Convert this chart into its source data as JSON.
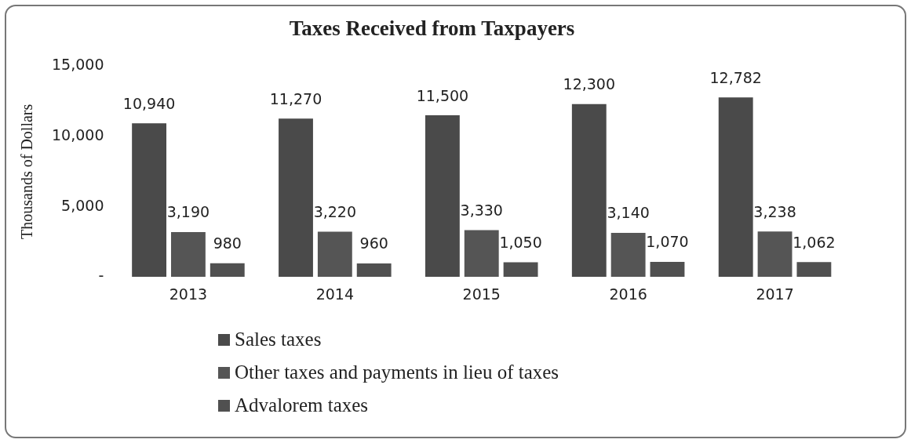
{
  "chart_data": {
    "type": "bar",
    "title": "Taxes Received from Taxpayers",
    "ylabel": "Thousands of Dollars",
    "categories": [
      "2013",
      "2014",
      "2015",
      "2016",
      "2017"
    ],
    "series": [
      {
        "name": "Sales taxes",
        "color": "#4a4a4a",
        "values": [
          10940,
          11270,
          11500,
          12300,
          12782
        ],
        "value_labels": [
          "10,940",
          "11,270",
          "11,500",
          "12,300",
          "12,782"
        ]
      },
      {
        "name": "Other taxes and payments in lieu of taxes",
        "color": "#555555",
        "values": [
          3190,
          3220,
          3330,
          3140,
          3238
        ],
        "value_labels": [
          "3,190",
          "3,220",
          "3,330",
          "3,140",
          "3,238"
        ]
      },
      {
        "name": "Advalorem taxes",
        "color": "#505050",
        "values": [
          980,
          960,
          1050,
          1070,
          1062
        ],
        "value_labels": [
          "980",
          "960",
          "1,050",
          "1,070",
          "1,062"
        ]
      }
    ],
    "ylim": [
      0,
      15000
    ],
    "yticks": [
      {
        "value": 0,
        "label": "-"
      },
      {
        "value": 5000,
        "label": "5,000"
      },
      {
        "value": 10000,
        "label": "10,000"
      },
      {
        "value": 15000,
        "label": "15,000"
      }
    ],
    "grid": false,
    "legend": "bottom"
  }
}
